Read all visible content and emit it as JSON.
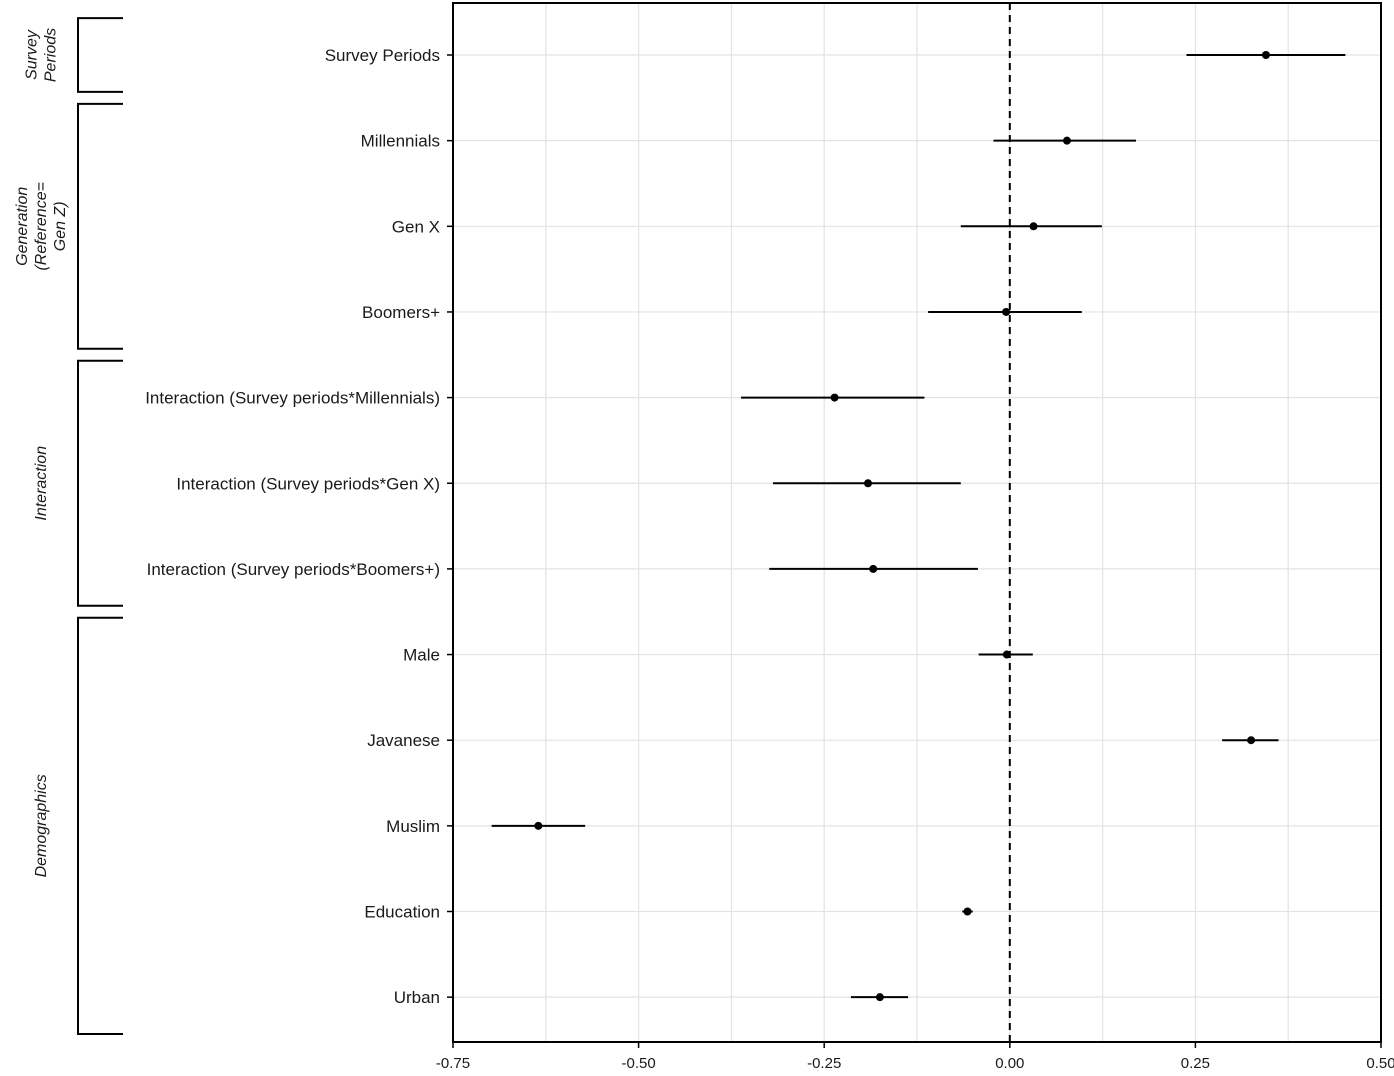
{
  "chart_data": {
    "type": "forest",
    "title": "",
    "xlabel": "",
    "ylabel": "",
    "xlim": [
      -0.75,
      0.5
    ],
    "x_ticks": [
      -0.75,
      -0.5,
      -0.25,
      0.0,
      0.25,
      0.5
    ],
    "x_tick_labels": [
      "-0.75",
      "-0.50",
      "-0.25",
      "0.00",
      "0.25",
      "0.50"
    ],
    "reference_line": 0.0,
    "grid": true,
    "rows": [
      {
        "label": "Survey Periods",
        "estimate": 0.345,
        "lower": 0.238,
        "upper": 0.452
      },
      {
        "label": "Millennials",
        "estimate": 0.077,
        "lower": -0.022,
        "upper": 0.17
      },
      {
        "label": "Gen X",
        "estimate": 0.032,
        "lower": -0.066,
        "upper": 0.124
      },
      {
        "label": "Boomers+",
        "estimate": -0.005,
        "lower": -0.11,
        "upper": 0.097
      },
      {
        "label": "Interaction (Survey periods*Millennials)",
        "estimate": -0.236,
        "lower": -0.362,
        "upper": -0.115
      },
      {
        "label": "Interaction (Survey periods*Gen X)",
        "estimate": -0.191,
        "lower": -0.319,
        "upper": -0.066
      },
      {
        "label": "Interaction (Survey periods*Boomers+)",
        "estimate": -0.184,
        "lower": -0.324,
        "upper": -0.043
      },
      {
        "label": "Male",
        "estimate": -0.004,
        "lower": -0.042,
        "upper": 0.031
      },
      {
        "label": "Javanese",
        "estimate": 0.325,
        "lower": 0.286,
        "upper": 0.362
      },
      {
        "label": "Muslim",
        "estimate": -0.635,
        "lower": -0.698,
        "upper": -0.572
      },
      {
        "label": "Education",
        "estimate": -0.057,
        "lower": -0.064,
        "upper": -0.05
      },
      {
        "label": "Urban",
        "estimate": -0.175,
        "lower": -0.214,
        "upper": -0.137
      }
    ],
    "groups": [
      {
        "lines": [
          "Survey",
          "Periods"
        ],
        "first_row": 0,
        "last_row": 0
      },
      {
        "lines": [
          "Generation",
          "(Reference=",
          "Gen Z)"
        ],
        "first_row": 1,
        "last_row": 3
      },
      {
        "lines": [
          "Interaction"
        ],
        "first_row": 4,
        "last_row": 6
      },
      {
        "lines": [
          "Demographics"
        ],
        "first_row": 7,
        "last_row": 11
      }
    ]
  }
}
